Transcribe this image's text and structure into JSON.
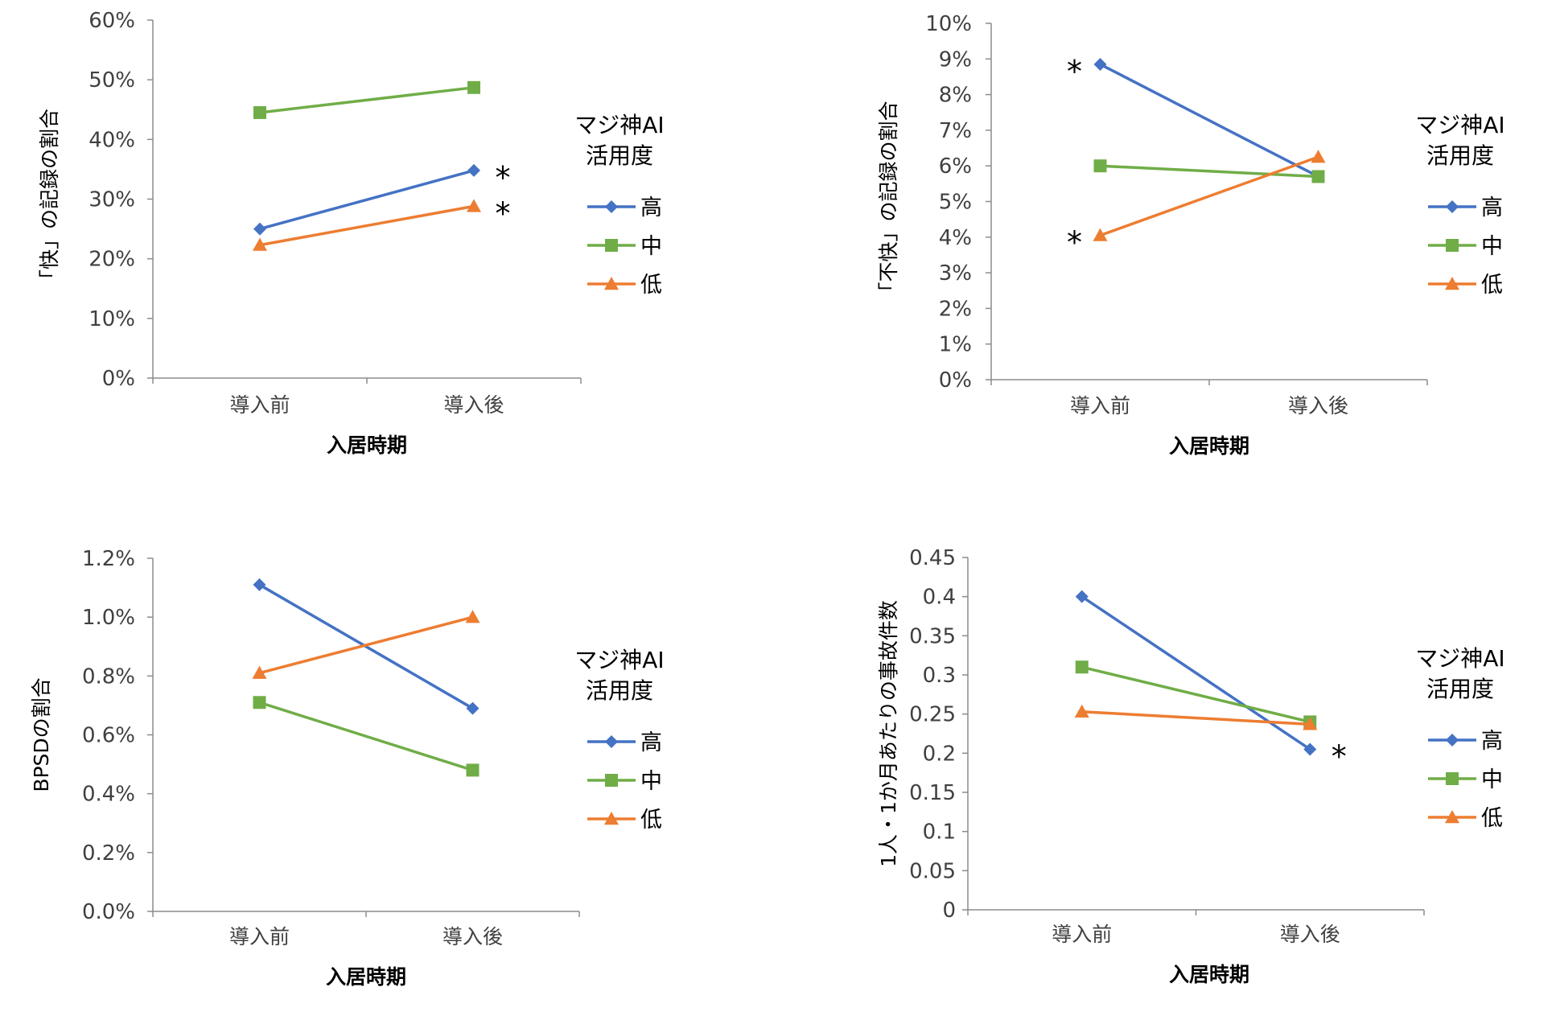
{
  "legend_title_lines": [
    "マジ神AI",
    "活用度"
  ],
  "legend_items": [
    "高",
    "中",
    "低"
  ],
  "series_colors": {
    "高": "#4472c4",
    "中": "#70ad47",
    "低": "#ed7d31"
  },
  "marker_shapes": {
    "高": "diamond",
    "中": "square",
    "低": "triangle"
  },
  "chart_data": [
    {
      "type": "line",
      "title": "",
      "categories": [
        "導入前",
        "導入後"
      ],
      "xlabel": "入居時期",
      "ylabel": "「快」の記録の割合",
      "ylim": [
        0,
        0.6
      ],
      "yticks": [
        "0%",
        "10%",
        "20%",
        "30%",
        "40%",
        "50%",
        "60%"
      ],
      "series": [
        {
          "name": "高",
          "values": [
            0.25,
            0.348
          ]
        },
        {
          "name": "中",
          "values": [
            0.445,
            0.487
          ]
        },
        {
          "name": "低",
          "values": [
            0.223,
            0.288
          ]
        }
      ],
      "annotations": [
        {
          "text": "*",
          "series": "高",
          "index": 1
        },
        {
          "text": "*",
          "series": "低",
          "index": 1
        }
      ],
      "legend_title": "マジ神AI活用度",
      "legend_position": "right"
    },
    {
      "type": "line",
      "title": "",
      "categories": [
        "導入前",
        "導入後"
      ],
      "xlabel": "入居時期",
      "ylabel": "「不快」の記録の割合",
      "ylim": [
        0,
        0.1
      ],
      "yticks": [
        "0%",
        "1%",
        "2%",
        "3%",
        "4%",
        "5%",
        "6%",
        "7%",
        "8%",
        "9%",
        "10%"
      ],
      "series": [
        {
          "name": "高",
          "values": [
            0.0885,
            0.057
          ]
        },
        {
          "name": "中",
          "values": [
            0.06,
            0.057
          ]
        },
        {
          "name": "低",
          "values": [
            0.0405,
            0.0625
          ]
        }
      ],
      "annotations": [
        {
          "text": "*",
          "series": "高",
          "index": 0
        },
        {
          "text": "*",
          "series": "低",
          "index": 0
        }
      ],
      "legend_title": "マジ神AI活用度",
      "legend_position": "right"
    },
    {
      "type": "line",
      "title": "",
      "categories": [
        "導入前",
        "導入後"
      ],
      "xlabel": "入居時期",
      "ylabel": "BPSDの割合",
      "ylim": [
        0,
        0.012
      ],
      "yticks": [
        "0.0%",
        "0.2%",
        "0.4%",
        "0.6%",
        "0.8%",
        "1.0%",
        "1.2%"
      ],
      "series": [
        {
          "name": "高",
          "values": [
            0.0111,
            0.0069
          ]
        },
        {
          "name": "中",
          "values": [
            0.0071,
            0.0048
          ]
        },
        {
          "name": "低",
          "values": [
            0.0081,
            0.01
          ]
        }
      ],
      "annotations": [],
      "legend_title": "マジ神AI活用度",
      "legend_position": "right"
    },
    {
      "type": "line",
      "title": "",
      "categories": [
        "導入前",
        "導入後"
      ],
      "xlabel": "入居時期",
      "ylabel": "1人・1か月あたりの事故件数",
      "ylim": [
        0,
        0.45
      ],
      "yticks": [
        "0",
        "0.05",
        "0.1",
        "0.15",
        "0.2",
        "0.25",
        "0.3",
        "0.35",
        "0.4",
        "0.45"
      ],
      "series": [
        {
          "name": "高",
          "values": [
            0.4,
            0.205
          ]
        },
        {
          "name": "中",
          "values": [
            0.31,
            0.24
          ]
        },
        {
          "name": "低",
          "values": [
            0.253,
            0.237
          ]
        }
      ],
      "annotations": [
        {
          "text": "*",
          "series": "高",
          "index": 1
        }
      ],
      "legend_title": "マジ神AI活用度",
      "legend_position": "right"
    }
  ]
}
